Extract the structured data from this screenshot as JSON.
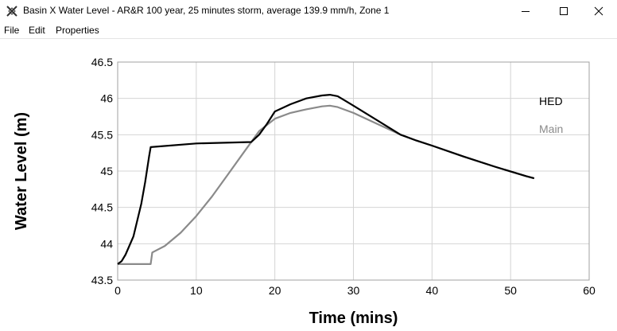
{
  "window": {
    "title": "Basin X Water Level  - AR&R 100 year, 25 minutes storm, average 139.9 mm/h, Zone 1",
    "controls": {
      "minimize": "minimize",
      "maximize": "maximize",
      "close": "close"
    }
  },
  "menu": {
    "items": [
      "File",
      "Edit",
      "Properties"
    ]
  },
  "chart_data": {
    "type": "line",
    "xlabel": "Time (mins)",
    "ylabel": "Water Level (m)",
    "xlim": [
      0,
      60
    ],
    "ylim": [
      43.5,
      46.5
    ],
    "xticks": [
      0,
      10,
      20,
      30,
      40,
      50,
      60
    ],
    "yticks": [
      43.5,
      44,
      44.5,
      45,
      45.5,
      46,
      46.5
    ],
    "xtick_labels": [
      "0",
      "10",
      "20",
      "30",
      "40",
      "50",
      "60"
    ],
    "ytick_labels": [
      "43.5",
      "44",
      "44.5",
      "45",
      "45.5",
      "46",
      "46.5"
    ],
    "grid": true,
    "legend_placement": "right",
    "series": [
      {
        "name": "HED",
        "color": "#000000",
        "x": [
          0,
          0.5,
          1,
          2,
          3,
          3.5,
          4,
          4.2,
          10,
          17,
          18,
          19,
          20,
          22,
          24,
          26,
          27,
          28,
          30,
          33,
          36,
          38,
          40,
          44,
          48,
          52,
          53
        ],
        "y": [
          43.72,
          43.76,
          43.85,
          44.1,
          44.55,
          44.85,
          45.2,
          45.33,
          45.38,
          45.4,
          45.5,
          45.65,
          45.82,
          45.92,
          46.0,
          46.04,
          46.05,
          46.03,
          45.9,
          45.7,
          45.5,
          45.42,
          45.35,
          45.2,
          45.06,
          44.93,
          44.9
        ]
      },
      {
        "name": "Main",
        "color": "#8a8a8a",
        "x": [
          0,
          0.5,
          4.2,
          4.4,
          6,
          8,
          10,
          12,
          14,
          16,
          18,
          20,
          22,
          24,
          26,
          27,
          28,
          30,
          33,
          36,
          38,
          40,
          44,
          48,
          52,
          53
        ],
        "y": [
          43.72,
          43.72,
          43.72,
          43.88,
          43.97,
          44.15,
          44.38,
          44.65,
          44.95,
          45.25,
          45.55,
          45.72,
          45.8,
          45.85,
          45.89,
          45.9,
          45.88,
          45.8,
          45.65,
          45.5,
          45.42,
          45.35,
          45.2,
          45.06,
          44.93,
          44.9
        ]
      }
    ]
  }
}
